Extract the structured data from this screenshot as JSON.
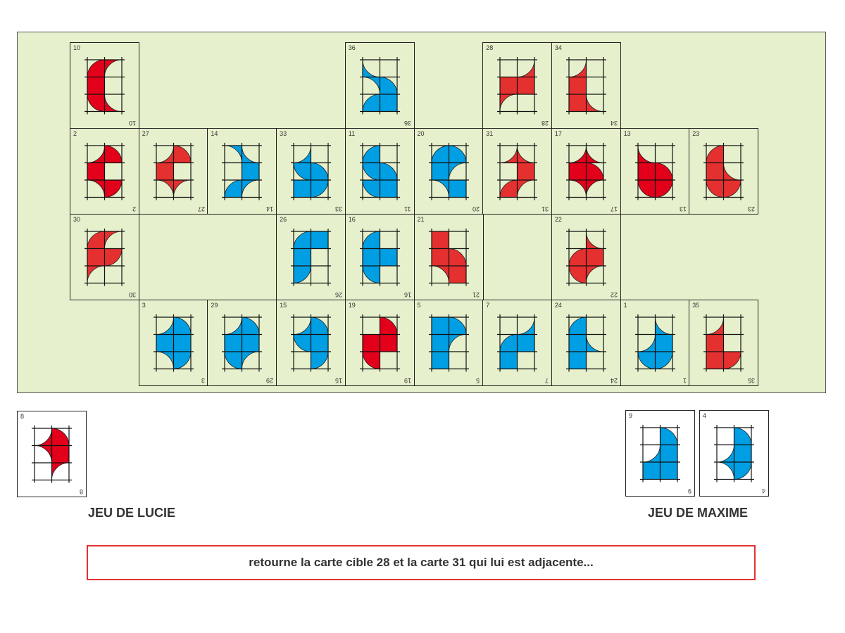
{
  "colors": {
    "red": "#e2001a",
    "red_light": "#e53030",
    "blue": "#009fe3",
    "board": "#e6f0cc"
  },
  "board": {
    "rows": [
      [
        "10",
        null,
        null,
        null,
        "36",
        null,
        "28",
        "34",
        null,
        null
      ],
      [
        "2",
        "27",
        "14",
        "33",
        "11",
        "20",
        "31",
        "17",
        "13",
        "23"
      ],
      [
        "30",
        null,
        null,
        "26",
        "16",
        "21",
        null,
        "22",
        null,
        null
      ],
      [
        null,
        "3",
        "29",
        "15",
        "19",
        "5",
        "7",
        "24",
        "1",
        "35"
      ]
    ]
  },
  "cards": {
    "10": {
      "number": "10",
      "color": "red",
      "cells": [
        [
          "Q-br",
          "C-br"
        ],
        [
          "F",
          "0"
        ],
        [
          "Q-tr",
          "C-tr"
        ]
      ]
    },
    "36": {
      "number": "36",
      "color": "blue",
      "cells": [
        [
          "C-tr",
          "0"
        ],
        [
          "C-bl",
          "Q-bl"
        ],
        [
          "Q-br",
          "F"
        ]
      ]
    },
    "28": {
      "number": "28",
      "color": "red_light",
      "cells": [
        [
          "0",
          "C-tl"
        ],
        [
          "F",
          "F"
        ],
        [
          "C-br",
          "0"
        ]
      ]
    },
    "34": {
      "number": "34",
      "color": "red_light",
      "cells": [
        [
          "C-tl",
          "0"
        ],
        [
          "F",
          "0"
        ],
        [
          "F",
          "C-tr"
        ]
      ]
    },
    "2": {
      "number": "2",
      "color": "red",
      "cells": [
        [
          "C-tl",
          "Q-bl"
        ],
        [
          "F",
          "0"
        ],
        [
          "C-bl",
          "Q-tl"
        ]
      ]
    },
    "27": {
      "number": "27",
      "color": "red_light",
      "cells": [
        [
          "C-tl",
          "Q-bl"
        ],
        [
          "F",
          "0"
        ],
        [
          "C-bl",
          "C-br"
        ]
      ]
    },
    "14": {
      "number": "14",
      "color": "blue",
      "cells": [
        [
          "C-bl",
          "C-tr"
        ],
        [
          "0",
          "F"
        ],
        [
          "Q-br",
          "C-br"
        ]
      ]
    },
    "33": {
      "number": "33",
      "color": "blue",
      "cells": [
        [
          "C-tl",
          "0"
        ],
        [
          "Q-tr",
          "Q-bl"
        ],
        [
          "F",
          "Q-tl"
        ]
      ]
    },
    "11": {
      "number": "11",
      "color": "blue",
      "cells": [
        [
          "Q-br",
          "0"
        ],
        [
          "Q-tr",
          "Q-bl"
        ],
        [
          "Q-tr",
          "F"
        ]
      ]
    },
    "20": {
      "number": "20",
      "color": "blue",
      "cells": [
        [
          "Q-br",
          "Q-bl"
        ],
        [
          "F",
          "C-br"
        ],
        [
          "C-bl",
          "F"
        ]
      ]
    },
    "31": {
      "number": "31",
      "color": "red_light",
      "cells": [
        [
          "C-tl",
          "C-tr"
        ],
        [
          "0",
          "F"
        ],
        [
          "Q-br",
          "C-br"
        ]
      ]
    },
    "17": {
      "number": "17",
      "color": "red",
      "cells": [
        [
          "C-tl",
          "C-tr"
        ],
        [
          "F",
          "Q-bl"
        ],
        [
          "C-bl",
          "C-br"
        ]
      ]
    },
    "13": {
      "number": "13",
      "color": "red",
      "cells": [
        [
          "C-tr",
          "0"
        ],
        [
          "F",
          "Q-bl"
        ],
        [
          "Q-tr",
          "Q-tl"
        ]
      ]
    },
    "23": {
      "number": "23",
      "color": "red_light",
      "cells": [
        [
          "Q-br",
          "0"
        ],
        [
          "F",
          "C-tr"
        ],
        [
          "Q-tr",
          "Q-tl"
        ]
      ]
    },
    "30": {
      "number": "30",
      "color": "red_light",
      "cells": [
        [
          "Q-br",
          "C-br"
        ],
        [
          "F",
          "Q-tl"
        ],
        [
          "C-br",
          "0"
        ]
      ]
    },
    "26": {
      "number": "26",
      "color": "blue",
      "cells": [
        [
          "Q-br",
          "F"
        ],
        [
          "F",
          "0"
        ],
        [
          "Q-tl",
          "0"
        ]
      ]
    },
    "16": {
      "number": "16",
      "color": "blue",
      "cells": [
        [
          "Q-br",
          "0"
        ],
        [
          "F",
          "F"
        ],
        [
          "Q-tr",
          "0"
        ]
      ]
    },
    "21": {
      "number": "21",
      "color": "red_light",
      "cells": [
        [
          "F",
          "0"
        ],
        [
          "F",
          "Q-bl"
        ],
        [
          "C-bl",
          "F"
        ]
      ]
    },
    "22": {
      "number": "22",
      "color": "red_light",
      "cells": [
        [
          "0",
          "C-tr"
        ],
        [
          "Q-br",
          "F"
        ],
        [
          "Q-tr",
          "C-br"
        ]
      ]
    },
    "3": {
      "number": "3",
      "color": "blue",
      "cells": [
        [
          "C-tl",
          "Q-bl"
        ],
        [
          "F",
          "F"
        ],
        [
          "C-bl",
          "Q-tl"
        ]
      ]
    },
    "29": {
      "number": "29",
      "color": "blue",
      "cells": [
        [
          "C-tl",
          "Q-bl"
        ],
        [
          "F",
          "F"
        ],
        [
          "Q-tr",
          "C-br"
        ]
      ]
    },
    "15": {
      "number": "15",
      "color": "blue",
      "cells": [
        [
          "C-tl",
          "Q-bl"
        ],
        [
          "Q-tr",
          "F"
        ],
        [
          "0",
          "Q-tl"
        ]
      ]
    },
    "19": {
      "number": "19",
      "color": "red",
      "cells": [
        [
          "0",
          "Q-bl"
        ],
        [
          "F",
          "F"
        ],
        [
          "Q-tr",
          "0"
        ]
      ]
    },
    "5": {
      "number": "5",
      "color": "blue",
      "cells": [
        [
          "F",
          "Q-bl"
        ],
        [
          "F",
          "C-br"
        ],
        [
          "F",
          "0"
        ]
      ]
    },
    "7": {
      "number": "7",
      "color": "blue",
      "cells": [
        [
          "0",
          "C-tl"
        ],
        [
          "Q-br",
          "F"
        ],
        [
          "F",
          "0"
        ]
      ]
    },
    "24": {
      "number": "24",
      "color": "blue",
      "cells": [
        [
          "Q-br",
          "0"
        ],
        [
          "F",
          "C-tr"
        ],
        [
          "F",
          "0"
        ]
      ]
    },
    "1": {
      "number": "1",
      "color": "blue",
      "cells": [
        [
          "0",
          "C-tr"
        ],
        [
          "C-tl",
          "F"
        ],
        [
          "Q-tr",
          "Q-tl"
        ]
      ]
    },
    "35": {
      "number": "35",
      "color": "red_light",
      "cells": [
        [
          "C-tl",
          "0"
        ],
        [
          "F",
          "0"
        ],
        [
          "F",
          "Q-tl"
        ]
      ]
    },
    "8": {
      "number": "8",
      "color": "red",
      "cells": [
        [
          "C-tl",
          "Q-bl"
        ],
        [
          "C-bl",
          "F"
        ],
        [
          "0",
          "C-br"
        ]
      ]
    },
    "9": {
      "number": "9",
      "color": "blue",
      "cells": [
        [
          "0",
          "Q-bl"
        ],
        [
          "C-tl",
          "F"
        ],
        [
          "F",
          "F"
        ]
      ]
    },
    "4": {
      "number": "4",
      "color": "blue",
      "cells": [
        [
          "0",
          "Q-bl"
        ],
        [
          "C-tl",
          "F"
        ],
        [
          "C-bl",
          "Q-tl"
        ]
      ]
    }
  },
  "players": {
    "lucie": {
      "label": "JEU DE LUCIE",
      "hand": [
        "8"
      ]
    },
    "maxime": {
      "label": "JEU DE MAXIME",
      "hand": [
        "9",
        "4"
      ]
    }
  },
  "message": "retourne la carte cible 28 et la carte 31 qui lui est adjacente..."
}
